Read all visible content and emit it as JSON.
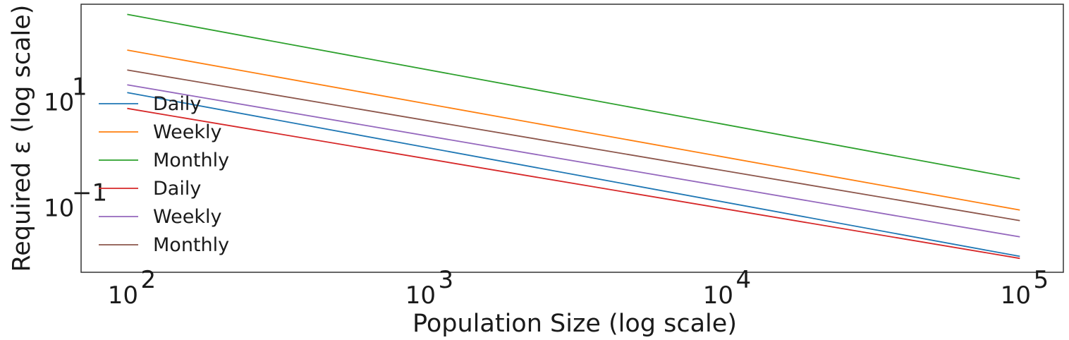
{
  "chart_data": {
    "type": "line",
    "xlabel": "Population Size (log scale)",
    "ylabel": "Required ε (log scale)",
    "x_scale": "log",
    "y_scale": "log",
    "xlim": [
      70,
      140000
    ],
    "ylim": [
      0.006,
      700
    ],
    "x_ticks": [
      {
        "value": 100,
        "base": "10",
        "exp": "2"
      },
      {
        "value": 1000,
        "base": "10",
        "exp": "3"
      },
      {
        "value": 10000,
        "base": "10",
        "exp": "4"
      },
      {
        "value": 100000,
        "base": "10",
        "exp": "5"
      }
    ],
    "y_ticks": [
      {
        "value": 10,
        "base": "10",
        "exp": "1"
      },
      {
        "value": 0.1,
        "base": "10",
        "exp": "−1"
      }
    ],
    "grid": false,
    "legend_position": "left",
    "series": [
      {
        "name": "Daily",
        "color": "#1f77b4",
        "x": [
          100,
          100000
        ],
        "y": [
          15,
          0.012
        ]
      },
      {
        "name": "Weekly",
        "color": "#ff7f0e",
        "x": [
          100,
          100000
        ],
        "y": [
          95,
          0.09
        ]
      },
      {
        "name": "Monthly",
        "color": "#2ca02c",
        "x": [
          100,
          100000
        ],
        "y": [
          450,
          0.35
        ]
      },
      {
        "name": "Daily",
        "color": "#d62728",
        "x": [
          100,
          100000
        ],
        "y": [
          7.5,
          0.011
        ]
      },
      {
        "name": "Weekly",
        "color": "#9467bd",
        "x": [
          100,
          100000
        ],
        "y": [
          21,
          0.028
        ]
      },
      {
        "name": "Monthly",
        "color": "#8c564b",
        "x": [
          100,
          100000
        ],
        "y": [
          40,
          0.057
        ]
      }
    ]
  }
}
